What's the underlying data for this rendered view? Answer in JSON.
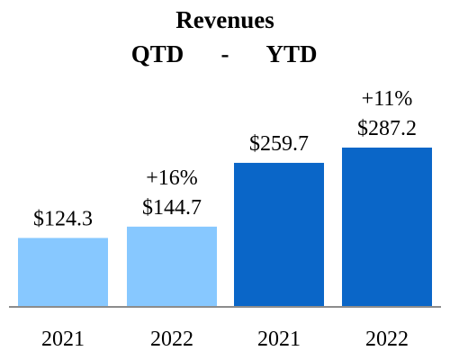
{
  "chart_data": {
    "type": "bar",
    "title": "Revenues",
    "subtitle": {
      "left": "QTD",
      "separator": "-",
      "right": "YTD"
    },
    "categories": [
      "2021",
      "2022",
      "2021",
      "2022"
    ],
    "groups": [
      "QTD",
      "QTD",
      "YTD",
      "YTD"
    ],
    "values": [
      124.3,
      144.7,
      259.7,
      287.2
    ],
    "value_labels": [
      "$124.3",
      "$144.7",
      "$259.7",
      "$287.2"
    ],
    "growth_labels": [
      "",
      "+16%",
      "",
      "+11%"
    ],
    "colors": [
      "#87c8ff",
      "#87c8ff",
      "#0a66c8",
      "#0a66c8"
    ],
    "axis_color": "#8c8c8c",
    "ylim": [
      0,
      300
    ],
    "grid": false,
    "legend": "none"
  }
}
